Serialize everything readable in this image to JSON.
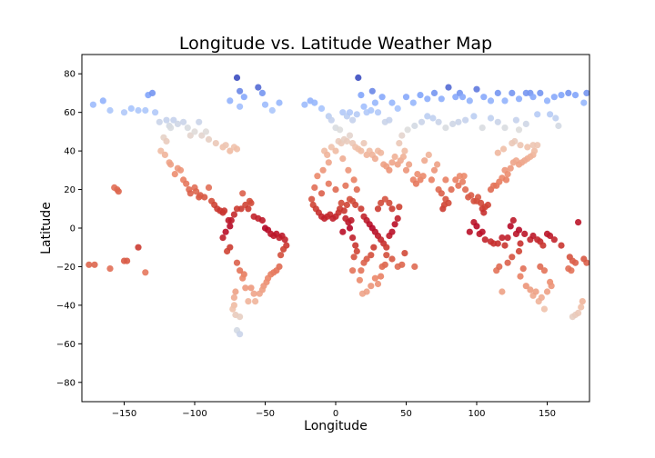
{
  "chart_data": {
    "type": "scatter",
    "title": "Longitude vs. Latitude Weather Map",
    "xlabel": "Longitude",
    "ylabel": "Latitude",
    "xlim": [
      -180,
      180
    ],
    "ylim": [
      -90,
      90
    ],
    "xticks": [
      -150,
      -100,
      -50,
      0,
      50,
      100,
      150
    ],
    "yticks": [
      -80,
      -60,
      -40,
      -20,
      0,
      20,
      40,
      60,
      80
    ],
    "grid": false,
    "legend": "none",
    "colormap": "coolwarm",
    "color_encodes": "latitude (warm near equator, cool near poles)",
    "colors": {
      "cold": "#3b4cc0",
      "mid": "#dddddd",
      "hot": "#b40426"
    },
    "points": [
      [
        -175,
        -19
      ],
      [
        -171,
        -19
      ],
      [
        -160,
        -21
      ],
      [
        -157,
        21
      ],
      [
        -155,
        20
      ],
      [
        -154,
        19
      ],
      [
        -150,
        -17
      ],
      [
        -148,
        -17
      ],
      [
        -140,
        -10
      ],
      [
        -135,
        -23
      ],
      [
        -172,
        64
      ],
      [
        -165,
        66
      ],
      [
        -160,
        61
      ],
      [
        -150,
        60
      ],
      [
        -145,
        62
      ],
      [
        -140,
        61
      ],
      [
        -135,
        61
      ],
      [
        -133,
        69
      ],
      [
        -130,
        70
      ],
      [
        -128,
        60
      ],
      [
        -125,
        55
      ],
      [
        -120,
        56
      ],
      [
        -118,
        53
      ],
      [
        -117,
        52
      ],
      [
        -115,
        56
      ],
      [
        -112,
        54
      ],
      [
        -108,
        55
      ],
      [
        -105,
        52
      ],
      [
        -103,
        48
      ],
      [
        -100,
        50
      ],
      [
        -97,
        55
      ],
      [
        -95,
        48
      ],
      [
        -92,
        50
      ],
      [
        -90,
        46
      ],
      [
        -85,
        44
      ],
      [
        -80,
        42
      ],
      [
        -78,
        43
      ],
      [
        -75,
        40
      ],
      [
        -72,
        42
      ],
      [
        -70,
        41
      ],
      [
        -122,
        47
      ],
      [
        -120,
        45
      ],
      [
        -124,
        40
      ],
      [
        -121,
        38
      ],
      [
        -118,
        34
      ],
      [
        -117,
        33
      ],
      [
        -114,
        28
      ],
      [
        -112,
        31
      ],
      [
        -110,
        30
      ],
      [
        -108,
        25
      ],
      [
        -106,
        23
      ],
      [
        -104,
        20
      ],
      [
        -103,
        18
      ],
      [
        -100,
        21
      ],
      [
        -99,
        19
      ],
      [
        -97,
        16
      ],
      [
        -96,
        17
      ],
      [
        -93,
        16
      ],
      [
        -90,
        21
      ],
      [
        -88,
        14
      ],
      [
        -86,
        12
      ],
      [
        -84,
        10
      ],
      [
        -82,
        9
      ],
      [
        -80,
        8
      ],
      [
        -79,
        9
      ],
      [
        -76,
        4
      ],
      [
        -75,
        1
      ],
      [
        -74,
        4
      ],
      [
        -72,
        7
      ],
      [
        -70,
        10
      ],
      [
        -67,
        10
      ],
      [
        -66,
        18
      ],
      [
        -64,
        12
      ],
      [
        -62,
        10
      ],
      [
        -61,
        14
      ],
      [
        -60,
        13
      ],
      [
        -58,
        6
      ],
      [
        -55,
        5
      ],
      [
        -52,
        4
      ],
      [
        -50,
        0
      ],
      [
        -48,
        -1
      ],
      [
        -46,
        -3
      ],
      [
        -44,
        -4
      ],
      [
        -42,
        -3
      ],
      [
        -40,
        -5
      ],
      [
        -38,
        -4
      ],
      [
        -36,
        -6
      ],
      [
        -35,
        -9
      ],
      [
        -37,
        -11
      ],
      [
        -39,
        -14
      ],
      [
        -40,
        -20
      ],
      [
        -42,
        -22
      ],
      [
        -44,
        -23
      ],
      [
        -46,
        -24
      ],
      [
        -48,
        -26
      ],
      [
        -49,
        -28
      ],
      [
        -51,
        -30
      ],
      [
        -52,
        -32
      ],
      [
        -54,
        -34
      ],
      [
        -57,
        -38
      ],
      [
        -58,
        -34
      ],
      [
        -60,
        -31
      ],
      [
        -62,
        -38
      ],
      [
        -64,
        -31
      ],
      [
        -65,
        -24
      ],
      [
        -66,
        -26
      ],
      [
        -68,
        -22
      ],
      [
        -70,
        -18
      ],
      [
        -71,
        -33
      ],
      [
        -72,
        -36
      ],
      [
        -72,
        -40
      ],
      [
        -73,
        -42
      ],
      [
        -71,
        -45
      ],
      [
        -68,
        -46
      ],
      [
        -70,
        -53
      ],
      [
        -68,
        -55
      ],
      [
        -75,
        -10
      ],
      [
        -77,
        -12
      ],
      [
        -78,
        -2
      ],
      [
        -80,
        -5
      ],
      [
        -70,
        78
      ],
      [
        -68,
        71
      ],
      [
        -65,
        68
      ],
      [
        -55,
        73
      ],
      [
        -52,
        70
      ],
      [
        -50,
        64
      ],
      [
        -45,
        61
      ],
      [
        -40,
        65
      ],
      [
        -68,
        63
      ],
      [
        -75,
        66
      ],
      [
        -22,
        64
      ],
      [
        -18,
        66
      ],
      [
        -15,
        65
      ],
      [
        -10,
        62
      ],
      [
        -5,
        58
      ],
      [
        -3,
        56
      ],
      [
        0,
        52
      ],
      [
        3,
        51
      ],
      [
        5,
        60
      ],
      [
        8,
        58
      ],
      [
        10,
        60
      ],
      [
        12,
        56
      ],
      [
        15,
        59
      ],
      [
        16,
        78
      ],
      [
        18,
        69
      ],
      [
        20,
        63
      ],
      [
        22,
        60
      ],
      [
        25,
        61
      ],
      [
        26,
        71
      ],
      [
        28,
        65
      ],
      [
        30,
        60
      ],
      [
        33,
        68
      ],
      [
        35,
        55
      ],
      [
        38,
        56
      ],
      [
        40,
        65
      ],
      [
        44,
        62
      ],
      [
        50,
        68
      ],
      [
        55,
        65
      ],
      [
        60,
        69
      ],
      [
        65,
        67
      ],
      [
        -8,
        40
      ],
      [
        -6,
        38
      ],
      [
        -3,
        42
      ],
      [
        0,
        40
      ],
      [
        2,
        45
      ],
      [
        4,
        44
      ],
      [
        6,
        46
      ],
      [
        8,
        45
      ],
      [
        10,
        48
      ],
      [
        12,
        44
      ],
      [
        14,
        42
      ],
      [
        16,
        41
      ],
      [
        18,
        40
      ],
      [
        20,
        44
      ],
      [
        22,
        38
      ],
      [
        24,
        40
      ],
      [
        26,
        38
      ],
      [
        28,
        36
      ],
      [
        30,
        40
      ],
      [
        32,
        39
      ],
      [
        34,
        33
      ],
      [
        36,
        32
      ],
      [
        38,
        30
      ],
      [
        40,
        34
      ],
      [
        42,
        37
      ],
      [
        44,
        33
      ],
      [
        46,
        35
      ],
      [
        48,
        37
      ],
      [
        50,
        30
      ],
      [
        52,
        33
      ],
      [
        -17,
        15
      ],
      [
        -16,
        12
      ],
      [
        -14,
        10
      ],
      [
        -12,
        8
      ],
      [
        -10,
        6
      ],
      [
        -8,
        5
      ],
      [
        -6,
        6
      ],
      [
        -4,
        7
      ],
      [
        -2,
        5
      ],
      [
        0,
        6
      ],
      [
        2,
        8
      ],
      [
        3,
        10
      ],
      [
        4,
        13
      ],
      [
        6,
        9
      ],
      [
        8,
        12
      ],
      [
        10,
        15
      ],
      [
        12,
        14
      ],
      [
        14,
        12
      ],
      [
        15,
        20
      ],
      [
        13,
        25
      ],
      [
        9,
        30
      ],
      [
        5,
        36
      ],
      [
        -5,
        34
      ],
      [
        -9,
        30
      ],
      [
        -13,
        27
      ],
      [
        -15,
        21
      ],
      [
        -10,
        18
      ],
      [
        -5,
        23
      ],
      [
        0,
        20
      ],
      [
        7,
        22
      ],
      [
        18,
        10
      ],
      [
        20,
        6
      ],
      [
        22,
        4
      ],
      [
        24,
        2
      ],
      [
        26,
        0
      ],
      [
        28,
        -2
      ],
      [
        30,
        -4
      ],
      [
        32,
        -6
      ],
      [
        34,
        -8
      ],
      [
        36,
        -10
      ],
      [
        38,
        -4
      ],
      [
        40,
        -2
      ],
      [
        42,
        2
      ],
      [
        44,
        5
      ],
      [
        45,
        11
      ],
      [
        40,
        10
      ],
      [
        38,
        13
      ],
      [
        35,
        15
      ],
      [
        32,
        13
      ],
      [
        30,
        10
      ],
      [
        27,
        -10
      ],
      [
        25,
        -14
      ],
      [
        22,
        -16
      ],
      [
        20,
        -18
      ],
      [
        18,
        -22
      ],
      [
        17,
        -27
      ],
      [
        19,
        -34
      ],
      [
        22,
        -33
      ],
      [
        25,
        -30
      ],
      [
        28,
        -26
      ],
      [
        30,
        -29
      ],
      [
        32,
        -25
      ],
      [
        35,
        -19
      ],
      [
        33,
        -20
      ],
      [
        36,
        -14
      ],
      [
        40,
        -16
      ],
      [
        44,
        -20
      ],
      [
        47,
        -19
      ],
      [
        49,
        -13
      ],
      [
        56,
        -20
      ],
      [
        12,
        -5
      ],
      [
        14,
        -9
      ],
      [
        15,
        -12
      ],
      [
        13,
        -15
      ],
      [
        12,
        -22
      ],
      [
        10,
        0
      ],
      [
        9,
        3
      ],
      [
        11,
        4
      ],
      [
        7,
        5
      ],
      [
        5,
        -2
      ],
      [
        55,
        25
      ],
      [
        57,
        23
      ],
      [
        58,
        28
      ],
      [
        60,
        25
      ],
      [
        62,
        27
      ],
      [
        63,
        35
      ],
      [
        66,
        38
      ],
      [
        68,
        25
      ],
      [
        70,
        30
      ],
      [
        72,
        33
      ],
      [
        73,
        20
      ],
      [
        75,
        18
      ],
      [
        76,
        10
      ],
      [
        77,
        12
      ],
      [
        78,
        15
      ],
      [
        80,
        13
      ],
      [
        78,
        25
      ],
      [
        82,
        20
      ],
      [
        85,
        25
      ],
      [
        87,
        22
      ],
      [
        88,
        27
      ],
      [
        90,
        24
      ],
      [
        91,
        27
      ],
      [
        92,
        20
      ],
      [
        94,
        16
      ],
      [
        96,
        17
      ],
      [
        98,
        14
      ],
      [
        100,
        14
      ],
      [
        101,
        16
      ],
      [
        103,
        13
      ],
      [
        104,
        10
      ],
      [
        105,
        8
      ],
      [
        106,
        11
      ],
      [
        108,
        12
      ],
      [
        110,
        20
      ],
      [
        112,
        22
      ],
      [
        114,
        22
      ],
      [
        116,
        24
      ],
      [
        118,
        26
      ],
      [
        120,
        30
      ],
      [
        121,
        25
      ],
      [
        122,
        28
      ],
      [
        124,
        31
      ],
      [
        126,
        34
      ],
      [
        128,
        35
      ],
      [
        130,
        33
      ],
      [
        132,
        34
      ],
      [
        134,
        35
      ],
      [
        136,
        36
      ],
      [
        138,
        37
      ],
      [
        140,
        38
      ],
      [
        141,
        40
      ],
      [
        140,
        43
      ],
      [
        143,
        43
      ],
      [
        136,
        42
      ],
      [
        131,
        43
      ],
      [
        127,
        45
      ],
      [
        125,
        44
      ],
      [
        119,
        41
      ],
      [
        115,
        39
      ],
      [
        95,
        -2
      ],
      [
        98,
        3
      ],
      [
        100,
        1
      ],
      [
        102,
        -3
      ],
      [
        104,
        -2
      ],
      [
        106,
        -6
      ],
      [
        110,
        -7
      ],
      [
        112,
        -8
      ],
      [
        115,
        -8
      ],
      [
        118,
        -5
      ],
      [
        120,
        -9
      ],
      [
        122,
        -5
      ],
      [
        124,
        1
      ],
      [
        126,
        4
      ],
      [
        128,
        -3
      ],
      [
        130,
        -1
      ],
      [
        131,
        -8
      ],
      [
        134,
        -3
      ],
      [
        138,
        -6
      ],
      [
        140,
        -4
      ],
      [
        143,
        -6
      ],
      [
        145,
        -7
      ],
      [
        147,
        -9
      ],
      [
        150,
        -3
      ],
      [
        152,
        -4
      ],
      [
        155,
        -6
      ],
      [
        160,
        -9
      ],
      [
        166,
        -15
      ],
      [
        168,
        -17
      ],
      [
        172,
        3
      ],
      [
        114,
        -22
      ],
      [
        116,
        -20
      ],
      [
        118,
        -33
      ],
      [
        122,
        -18
      ],
      [
        125,
        -15
      ],
      [
        130,
        -12
      ],
      [
        131,
        -25
      ],
      [
        133,
        -21
      ],
      [
        135,
        -30
      ],
      [
        138,
        -32
      ],
      [
        140,
        -35
      ],
      [
        142,
        -33
      ],
      [
        144,
        -38
      ],
      [
        146,
        -36
      ],
      [
        148,
        -42
      ],
      [
        150,
        -33
      ],
      [
        152,
        -28
      ],
      [
        153,
        -30
      ],
      [
        145,
        -20
      ],
      [
        148,
        -22
      ],
      [
        168,
        -46
      ],
      [
        170,
        -45
      ],
      [
        172,
        -44
      ],
      [
        175,
        -38
      ],
      [
        174,
        -41
      ],
      [
        170,
        -18
      ],
      [
        178,
        -18
      ],
      [
        176,
        -16
      ],
      [
        167,
        -22
      ],
      [
        165,
        -21
      ],
      [
        70,
        70
      ],
      [
        75,
        67
      ],
      [
        80,
        73
      ],
      [
        85,
        68
      ],
      [
        88,
        70
      ],
      [
        90,
        68
      ],
      [
        95,
        66
      ],
      [
        100,
        72
      ],
      [
        105,
        68
      ],
      [
        110,
        66
      ],
      [
        115,
        70
      ],
      [
        120,
        66
      ],
      [
        125,
        70
      ],
      [
        130,
        67
      ],
      [
        135,
        70
      ],
      [
        138,
        70
      ],
      [
        140,
        68
      ],
      [
        145,
        70
      ],
      [
        150,
        66
      ],
      [
        155,
        68
      ],
      [
        160,
        69
      ],
      [
        165,
        70
      ],
      [
        170,
        69
      ],
      [
        176,
        65
      ],
      [
        178,
        70
      ],
      [
        152,
        59
      ],
      [
        158,
        53
      ],
      [
        156,
        57
      ],
      [
        143,
        59
      ],
      [
        135,
        54
      ],
      [
        130,
        51
      ],
      [
        128,
        56
      ],
      [
        120,
        52
      ],
      [
        115,
        55
      ],
      [
        110,
        57
      ],
      [
        104,
        52
      ],
      [
        98,
        58
      ],
      [
        92,
        56
      ],
      [
        87,
        55
      ],
      [
        83,
        54
      ],
      [
        78,
        52
      ],
      [
        73,
        55
      ],
      [
        69,
        57
      ],
      [
        65,
        58
      ],
      [
        61,
        55
      ],
      [
        56,
        53
      ],
      [
        51,
        51
      ],
      [
        47,
        48
      ],
      [
        45,
        44
      ],
      [
        49,
        40
      ]
    ]
  }
}
